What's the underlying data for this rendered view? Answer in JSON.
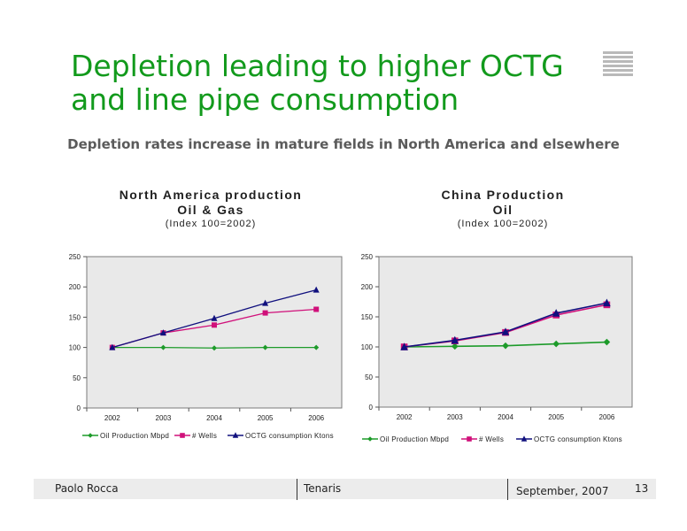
{
  "slide": {
    "title_line1": "Depletion leading to higher OCTG",
    "title_line2": "and line pipe consumption",
    "subtitle": "Depletion rates increase in mature fields in North America and elsewhere"
  },
  "chart_left": {
    "title_line1": "North America production",
    "title_line2": "Oil & Gas",
    "title_line3": "(Index 100=2002)"
  },
  "chart_right": {
    "title_line1": "China Production",
    "title_line2": "Oil",
    "title_line3": "(Index 100=2002)"
  },
  "chart_data": [
    {
      "type": "line",
      "title": "North America production Oil & Gas (Index 100=2002)",
      "categories": [
        "2002",
        "2003",
        "2004",
        "2005",
        "2006"
      ],
      "y_ticks": [
        "0",
        "50",
        "100",
        "150",
        "200",
        "250"
      ],
      "ylim": [
        0,
        250
      ],
      "grid": false,
      "legend_position": "bottom",
      "series": [
        {
          "name": "Oil Production Mbpd",
          "color": "#1d9b2a",
          "marker": "diamond",
          "values": [
            100,
            100,
            99,
            100,
            100
          ]
        },
        {
          "name": "# Wells",
          "color": "#d0107a",
          "marker": "square",
          "values": [
            100,
            124,
            137,
            157,
            163
          ]
        },
        {
          "name": "OCTG consumption Ktons",
          "color": "#10107e",
          "marker": "triangle",
          "values": [
            100,
            124,
            148,
            173,
            195
          ]
        }
      ]
    },
    {
      "type": "line",
      "title": "China Production Oil (Index 100=2002)",
      "categories": [
        "2002",
        "2003",
        "2004",
        "2005",
        "2006"
      ],
      "y_ticks": [
        "0",
        "50",
        "100",
        "150",
        "200",
        "250"
      ],
      "ylim": [
        0,
        250
      ],
      "grid": false,
      "legend_position": "bottom",
      "series": [
        {
          "name": "Oil Production Mbpd",
          "color": "#1d9b2a",
          "marker": "diamond",
          "values": [
            100,
            101,
            102,
            105,
            108
          ]
        },
        {
          "name": "# Wells",
          "color": "#d0107a",
          "marker": "square",
          "values": [
            100,
            110,
            124,
            153,
            170
          ]
        },
        {
          "name": "OCTG consumption Ktons",
          "color": "#10107e",
          "marker": "triangle",
          "values": [
            100,
            111,
            125,
            156,
            173
          ]
        }
      ]
    }
  ],
  "footer": {
    "presenter": "Paolo Rocca",
    "company": "Tenaris",
    "date": "September, 2007",
    "page_number": "13"
  }
}
